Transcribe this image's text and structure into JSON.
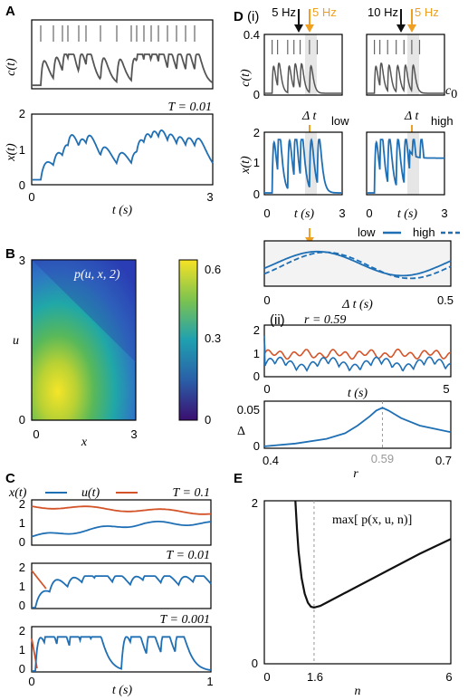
{
  "colors": {
    "x": "#1f6fb5",
    "u": "#d4542a",
    "c": "#555555",
    "orange": "#f0a020",
    "dark": "#111111",
    "grey": "#999999",
    "shade": "#e6e6e6"
  },
  "panel_labels": {
    "A": "A",
    "B": "B",
    "C": "C",
    "D": "D",
    "E": "E",
    "Di": "(i)",
    "Dii": "(ii)"
  },
  "chart_data": [
    {
      "id": "A_top",
      "type": "line",
      "ylabel": "c(t)",
      "xlim": [
        0,
        3
      ],
      "series": [
        {
          "color": "#555555"
        }
      ]
    },
    {
      "id": "A_bottom",
      "type": "line",
      "annotation": "T = 0.01",
      "xlabel": "t (s)",
      "ylabel": "x(t)",
      "xlim": [
        0,
        3
      ],
      "ylim": [
        0,
        2
      ],
      "xticks": [
        "0",
        "3"
      ],
      "yticks": [
        "0",
        "1",
        "2"
      ]
    },
    {
      "id": "B",
      "type": "heatmap",
      "annotation": "p(u, x, 2)",
      "xlabel": "x",
      "ylabel": "u",
      "xlim": [
        0,
        3
      ],
      "ylim": [
        0,
        3
      ],
      "xticks": [
        "0",
        "3"
      ],
      "yticks": [
        "0",
        "3"
      ],
      "colorbar": {
        "range": [
          0,
          0.65
        ],
        "ticks": [
          "0",
          "0.3",
          "0.6"
        ]
      }
    },
    {
      "id": "C1",
      "type": "line",
      "annotation": "T = 0.1",
      "xlim": [
        0,
        1
      ],
      "ylim": [
        0,
        2
      ],
      "yticks": [
        "0",
        "1",
        "2"
      ],
      "legend": [
        {
          "name": "x(t)",
          "color": "#1f6fb5"
        },
        {
          "name": "u(t)",
          "color": "#d4542a"
        }
      ]
    },
    {
      "id": "C2",
      "type": "line",
      "annotation": "T = 0.01",
      "xlim": [
        0,
        1
      ],
      "ylim": [
        0,
        2
      ],
      "yticks": [
        "0",
        "1",
        "2"
      ]
    },
    {
      "id": "C3",
      "type": "line",
      "annotation": "T = 0.001",
      "xlabel": "t (s)",
      "xlim": [
        0,
        1
      ],
      "ylim": [
        0,
        2
      ],
      "xticks": [
        "0",
        "1"
      ],
      "yticks": [
        "0",
        "1",
        "2"
      ]
    },
    {
      "id": "Di_c",
      "type": "line",
      "ylabel": "c(t)",
      "ylim": [
        0,
        0.4
      ],
      "yticks": [
        "0",
        "0.4"
      ],
      "arrows_low": [
        "5 Hz",
        "5 Hz"
      ],
      "arrows_high": [
        "10 Hz",
        "5 Hz"
      ],
      "c0_label": "c",
      "c0_sub": "0"
    },
    {
      "id": "Di_x",
      "type": "line",
      "ylabel": "x(t)",
      "xlabel": "t (s)",
      "xlim": [
        0,
        3
      ],
      "ylim": [
        0,
        2
      ],
      "xticks": [
        "0",
        "3"
      ],
      "yticks": [
        "0",
        "1",
        "2"
      ],
      "low_label": "low",
      "high_label": "high",
      "dt_label": "Δ t"
    },
    {
      "id": "Di_zoom",
      "type": "line",
      "xlabel": "Δ t (s)",
      "xlim": [
        0,
        0.5
      ],
      "xticks": [
        "0",
        "0.5"
      ],
      "legend": [
        {
          "name": "low",
          "style": "solid"
        },
        {
          "name": "high",
          "style": "dashed"
        }
      ]
    },
    {
      "id": "Dii_top",
      "type": "line",
      "annotation": "r = 0.59",
      "xlabel": "t (s)",
      "xlim": [
        0,
        5
      ],
      "ylim": [
        0,
        2
      ],
      "xticks": [
        "0",
        "5"
      ],
      "yticks": [
        "0",
        "1",
        "2"
      ]
    },
    {
      "id": "Dii_bottom",
      "type": "line",
      "xlabel": "r",
      "ylabel": "Δ",
      "xlim": [
        0.4,
        0.7
      ],
      "ylim": [
        0,
        0.05
      ],
      "xticks": [
        "0.4",
        "0.7"
      ],
      "yticks": [
        "0",
        "0.05"
      ],
      "marker": "0.59",
      "x": [
        0.4,
        0.45,
        0.5,
        0.53,
        0.55,
        0.57,
        0.58,
        0.59,
        0.6,
        0.62,
        0.65,
        0.7
      ],
      "y": [
        0.002,
        0.005,
        0.01,
        0.016,
        0.024,
        0.034,
        0.04,
        0.043,
        0.04,
        0.032,
        0.024,
        0.017
      ]
    },
    {
      "id": "E",
      "type": "line",
      "annotation": "max[ p(x, u, n)]",
      "xlabel": "n",
      "xlim": [
        0,
        6
      ],
      "ylim": [
        0,
        2
      ],
      "xticks": [
        "0",
        "1.6",
        "6"
      ],
      "yticks": [
        "0",
        "2"
      ],
      "marker": "1.6",
      "x": [
        1.0,
        1.05,
        1.1,
        1.2,
        1.3,
        1.4,
        1.5,
        1.6,
        1.8,
        2.0,
        2.5,
        3.0,
        3.5,
        4.0,
        4.5,
        5.0,
        5.5,
        6.0
      ],
      "y": [
        2.0,
        1.65,
        1.38,
        1.05,
        0.86,
        0.75,
        0.7,
        0.69,
        0.71,
        0.75,
        0.85,
        0.95,
        1.05,
        1.15,
        1.25,
        1.35,
        1.44,
        1.53
      ]
    }
  ]
}
